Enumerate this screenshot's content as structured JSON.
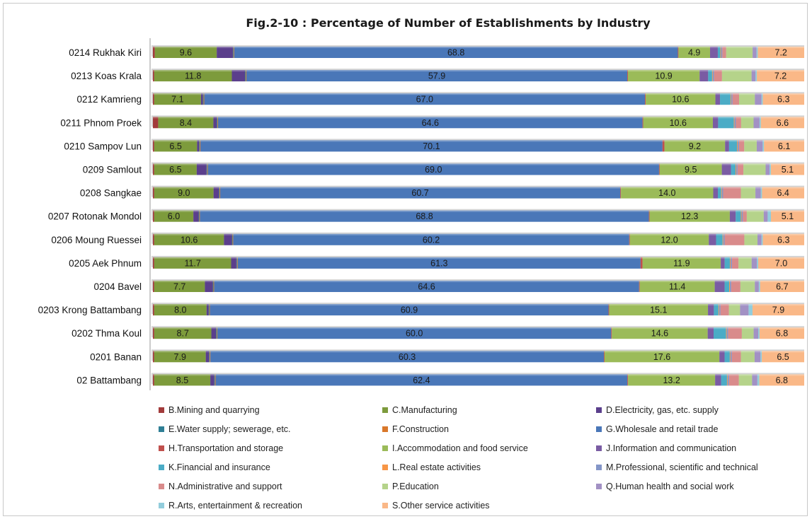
{
  "chart_data": {
    "type": "bar",
    "orientation": "horizontal",
    "stacked": true,
    "percent": true,
    "title": "Fig.2-10 : Percentage of Number of Establishments by Industry",
    "xlabel": "",
    "ylabel": "",
    "xlim": [
      0,
      100
    ],
    "grid": false,
    "legend_position": "bottom",
    "categories": [
      "0214 Rukhak Kiri",
      "0213 Koas Krala",
      "0212 Kamrieng",
      "0211 Phnom Proek",
      "0210 Sampov Lun",
      "0209 Samlout",
      "0208 Sangkae",
      "0207 Rotonak Mondol",
      "0206 Moung Ruessei",
      "0205 Aek Phnum",
      "0204 Bavel",
      "0203 Krong Battambang",
      "0202 Thma Koul",
      "0201 Banan",
      "02  Battambang"
    ],
    "series": [
      {
        "name": "B.Mining and quarrying",
        "color": "#a23b3b",
        "values": [
          0.3,
          0.2,
          0.2,
          0.8,
          0.2,
          0.2,
          0.2,
          0.2,
          0.2,
          0.2,
          0.2,
          0.2,
          0.2,
          0.2,
          0.2
        ]
      },
      {
        "name": "C.Manufacturing",
        "color": "#7d9b3c",
        "values": [
          9.6,
          11.8,
          7.1,
          8.4,
          6.5,
          6.5,
          9.0,
          6.0,
          10.6,
          11.7,
          7.7,
          8.0,
          8.7,
          7.9,
          8.5
        ],
        "labels": [
          "9.6",
          "11.8",
          "7.1",
          "8.4",
          "6.5",
          "6.5",
          "9.0",
          "6.0",
          "10.6",
          "11.7",
          "7.7",
          "8.0",
          "8.7",
          "7.9",
          "8.5"
        ]
      },
      {
        "name": "D.Electricity, gas, etc. supply",
        "color": "#5b3f8c",
        "values": [
          2.5,
          2.0,
          0.3,
          0.5,
          0.3,
          1.5,
          0.8,
          0.8,
          1.2,
          0.8,
          1.2,
          0.3,
          0.7,
          0.5,
          0.6
        ]
      },
      {
        "name": "E.Water supply; sewerage, etc.",
        "color": "#2f7f95",
        "values": [
          0.1,
          0.1,
          0.1,
          0.1,
          0.1,
          0.1,
          0.1,
          0.1,
          0.1,
          0.1,
          0.1,
          0.1,
          0.1,
          0.1,
          0.1
        ]
      },
      {
        "name": "F.Construction",
        "color": "#d9782b",
        "values": [
          0.1,
          0.1,
          0.1,
          0.1,
          0.1,
          0.1,
          0.1,
          0.1,
          0.1,
          0.1,
          0.1,
          0.1,
          0.1,
          0.1,
          0.1
        ]
      },
      {
        "name": "G.Wholesale and retail trade",
        "color": "#4a77b8",
        "values": [
          68.8,
          57.9,
          67.0,
          64.6,
          70.1,
          69.0,
          60.7,
          68.8,
          60.2,
          61.3,
          64.6,
          60.9,
          60.0,
          60.3,
          62.4
        ],
        "labels": [
          "68.8",
          "57.9",
          "67.0",
          "64.6",
          "70.1",
          "69.0",
          "60.7",
          "68.8",
          "60.2",
          "61.3",
          "64.6",
          "60.9",
          "60.0",
          "60.3",
          "62.4"
        ]
      },
      {
        "name": "H.Transportation and storage",
        "color": "#c0504d",
        "values": [
          0.1,
          0.1,
          0.1,
          0.1,
          0.3,
          0.1,
          0.1,
          0.1,
          0.1,
          0.3,
          0.1,
          0.1,
          0.1,
          0.1,
          0.1
        ]
      },
      {
        "name": "I.Accommodation and food service",
        "color": "#9bbb59",
        "values": [
          4.9,
          10.9,
          10.6,
          10.6,
          9.2,
          9.5,
          14.0,
          12.3,
          12.0,
          11.9,
          11.4,
          15.1,
          14.6,
          17.6,
          13.2
        ],
        "labels": [
          "4.9",
          "10.9",
          "10.6",
          "10.6",
          "9.2",
          "9.5",
          "14.0",
          "12.3",
          "12.0",
          "11.9",
          "11.4",
          "15.1",
          "14.6",
          "17.6",
          "13.2"
        ]
      },
      {
        "name": "J.Information and communication",
        "color": "#7a5ca3",
        "values": [
          1.2,
          1.3,
          0.7,
          0.8,
          0.6,
          1.4,
          0.7,
          0.9,
          1.1,
          0.6,
          1.5,
          0.9,
          0.9,
          0.8,
          0.9
        ]
      },
      {
        "name": "K.Financial and insurance",
        "color": "#4bacc6",
        "values": [
          0.4,
          0.6,
          1.6,
          2.4,
          1.2,
          0.7,
          0.5,
          0.8,
          1.0,
          0.8,
          0.7,
          0.7,
          1.9,
          0.8,
          0.9
        ]
      },
      {
        "name": "L.Real estate activities",
        "color": "#f79646",
        "values": [
          0.1,
          0.1,
          0.1,
          0.1,
          0.1,
          0.1,
          0.1,
          0.1,
          0.1,
          0.1,
          0.1,
          0.1,
          0.1,
          0.1,
          0.1
        ]
      },
      {
        "name": "M.Professional, scientific and technical",
        "color": "#8496c8",
        "values": [
          0.2,
          0.2,
          0.2,
          0.2,
          0.2,
          0.2,
          0.2,
          0.2,
          0.2,
          0.2,
          0.2,
          0.2,
          0.2,
          0.2,
          0.2
        ]
      },
      {
        "name": "N.Administrative and support",
        "color": "#d98b8b",
        "values": [
          0.6,
          1.2,
          1.0,
          0.8,
          0.8,
          0.9,
          2.7,
          0.6,
          3.0,
          1.0,
          1.4,
          1.3,
          2.1,
          1.4,
          1.5
        ]
      },
      {
        "name": "P.Education",
        "color": "#b5d38a",
        "values": [
          4.1,
          4.5,
          2.4,
          1.9,
          1.9,
          3.4,
          2.2,
          2.6,
          2.0,
          2.0,
          2.2,
          1.7,
          1.8,
          2.1,
          2.0
        ]
      },
      {
        "name": "Q.Human health and social work",
        "color": "#a291c4",
        "values": [
          0.6,
          0.6,
          1.0,
          0.9,
          0.9,
          0.6,
          0.8,
          0.6,
          0.6,
          0.8,
          0.6,
          1.3,
          0.7,
          0.9,
          0.8
        ]
      },
      {
        "name": "R.Arts, entertainment & recreation",
        "color": "#92cddc",
        "values": [
          0.2,
          0.2,
          0.2,
          0.2,
          0.2,
          0.2,
          0.2,
          0.5,
          0.2,
          0.2,
          0.2,
          0.6,
          0.2,
          0.2,
          0.3
        ]
      },
      {
        "name": "S.Other service activities",
        "color": "#fab887",
        "values": [
          7.2,
          7.2,
          6.3,
          6.6,
          6.1,
          5.1,
          6.4,
          5.1,
          6.3,
          7.0,
          6.7,
          7.9,
          6.8,
          6.5,
          6.8
        ],
        "labels": [
          "7.2",
          "7.2",
          "6.3",
          "6.6",
          "6.1",
          "5.1",
          "6.4",
          "5.1",
          "6.3",
          "7.0",
          "6.7",
          "7.9",
          "6.8",
          "6.5",
          "6.8"
        ]
      }
    ]
  }
}
